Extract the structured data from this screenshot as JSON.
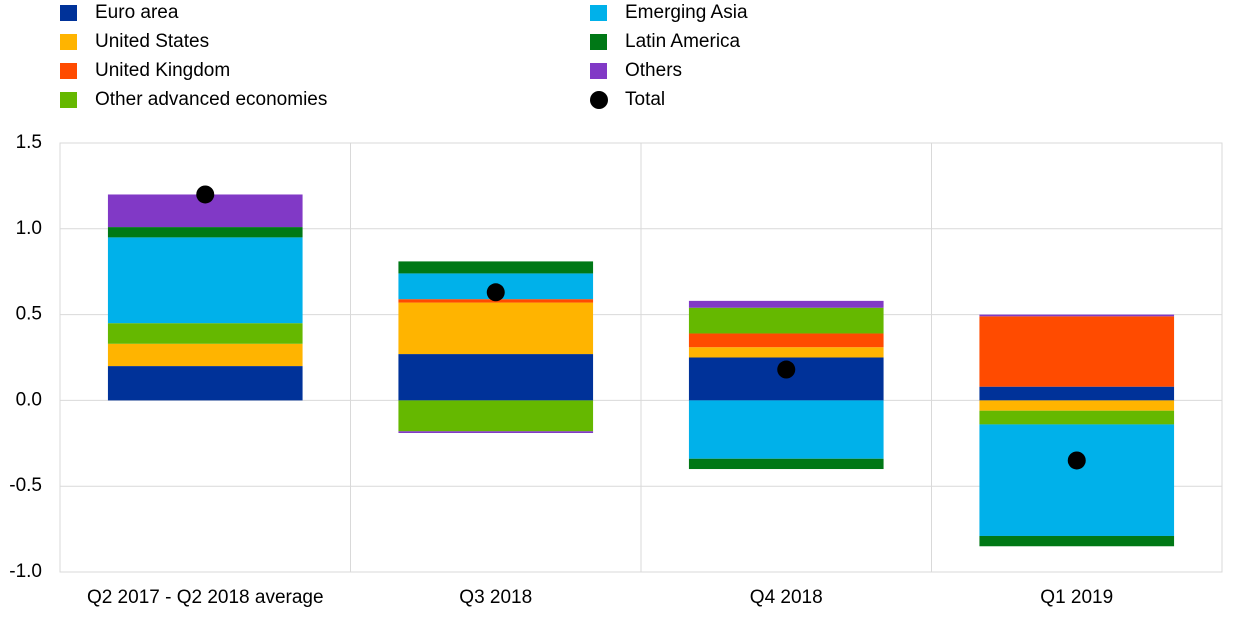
{
  "chart_data": {
    "type": "bar",
    "stacked": true,
    "categories": [
      "Q2 2017 - Q2 2018 average",
      "Q3 2018",
      "Q4 2018",
      "Q1 2019"
    ],
    "series": [
      {
        "name": "Euro area",
        "color": "#003299",
        "values": [
          0.2,
          0.27,
          0.25,
          0.08
        ]
      },
      {
        "name": "United States",
        "color": "#FFB400",
        "values": [
          0.13,
          0.3,
          0.06,
          -0.06
        ]
      },
      {
        "name": "United Kingdom",
        "color": "#FF4B00",
        "values": [
          0,
          0.02,
          0.08,
          0.41
        ]
      },
      {
        "name": "Other advanced economies",
        "color": "#65B800",
        "values": [
          0.12,
          -0.18,
          0.15,
          -0.08
        ]
      },
      {
        "name": "Emerging Asia",
        "color": "#00B1EA",
        "values": [
          0.5,
          0.15,
          -0.34,
          -0.65
        ]
      },
      {
        "name": "Latin America",
        "color": "#007816",
        "values": [
          0.06,
          0.07,
          -0.06,
          -0.06
        ]
      },
      {
        "name": "Others",
        "color": "#8139C6",
        "values": [
          0.19,
          -0.01,
          0.04,
          0.01
        ]
      },
      {
        "name": "Total",
        "color": "#000000",
        "marker": "circle",
        "values": [
          1.2,
          0.63,
          0.18,
          -0.35
        ]
      }
    ],
    "ylim": [
      -1.0,
      1.5
    ],
    "yticks": [
      {
        "value": -1.0,
        "label": "-1.0"
      },
      -0.5,
      {
        "value": 0.0,
        "label": "0.0"
      },
      0.5,
      {
        "value": 1.0,
        "label": "1.0"
      },
      1.5
    ],
    "grid": true
  }
}
